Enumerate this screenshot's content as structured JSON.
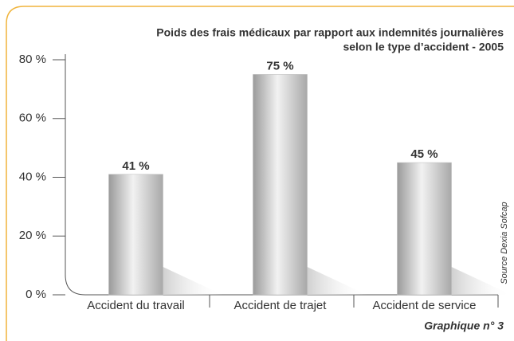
{
  "chart_data": {
    "type": "bar",
    "title": [
      "Poids des frais médicaux par rapport aux indemnités journalières",
      "selon le type d’accident - 2005"
    ],
    "categories": [
      "Accident du travail",
      "Accident de trajet",
      "Accident de service"
    ],
    "values": [
      41,
      75,
      45
    ],
    "value_labels": [
      "41 %",
      "75 %",
      "45 %"
    ],
    "color": "#b8b8b8",
    "ylim": [
      0,
      80
    ],
    "yticks": [
      {
        "value": 0,
        "label": "0 %"
      },
      {
        "value": 20,
        "label": "20 %"
      },
      {
        "value": 40,
        "label": "40 %"
      },
      {
        "value": 60,
        "label": "60 %"
      },
      {
        "value": 80,
        "label": "80 %"
      }
    ],
    "source": "Source Dexia Sofcap",
    "caption": "Graphique n° 3"
  }
}
